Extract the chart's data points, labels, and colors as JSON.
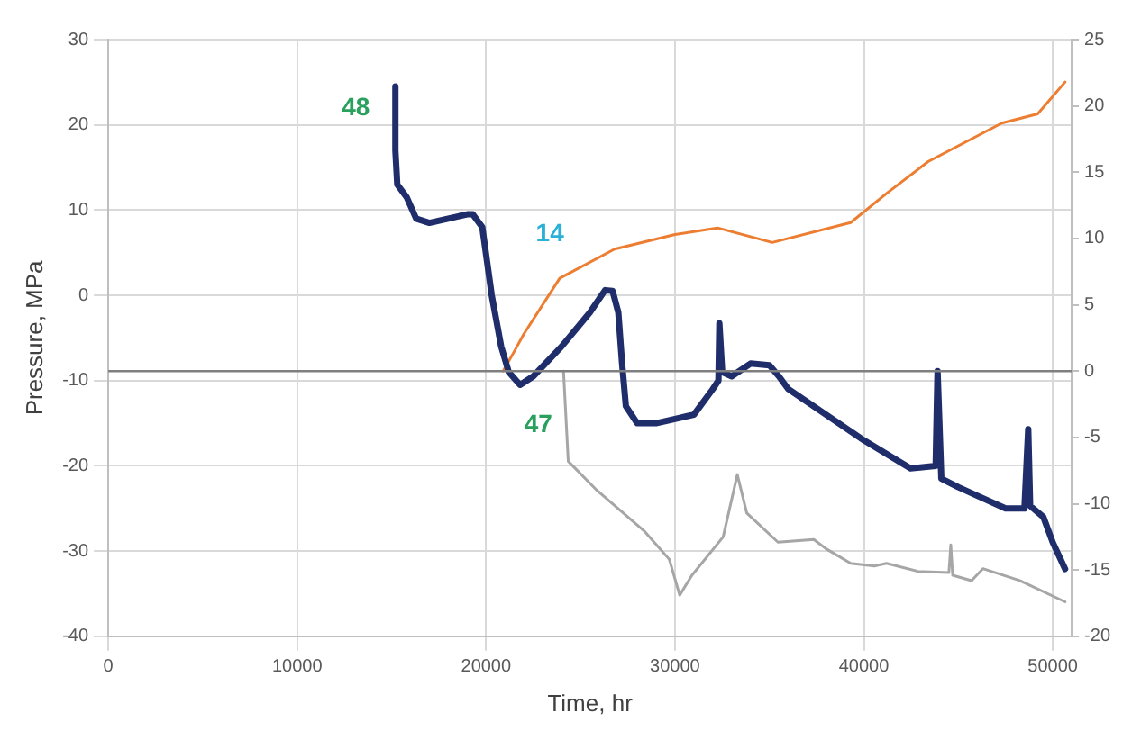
{
  "chart_data": {
    "type": "line",
    "xlabel": "Time, hr",
    "ylabel": "Pressure, MPa",
    "xlim": [
      0,
      51000
    ],
    "xticks": [
      0,
      10000,
      20000,
      30000,
      40000,
      50000
    ],
    "ylim": [
      -40,
      30
    ],
    "yticks": [
      -40,
      -30,
      -20,
      -10,
      0,
      10,
      20,
      30
    ],
    "y2lim": [
      -20,
      25
    ],
    "y2ticks": [
      -20,
      -15,
      -10,
      -5,
      0,
      5,
      10,
      15,
      20,
      25
    ],
    "grid": true,
    "legend": false,
    "marker": "none",
    "ref_lines": [
      {
        "axis": "y2",
        "value": 0,
        "color": "#7f7f7f"
      }
    ],
    "series": [
      {
        "name": "48",
        "color": "#1f2d6b",
        "x": [
          15200,
          15200,
          15300,
          15800,
          16300,
          17000,
          18000,
          19000,
          19300,
          19800,
          20300,
          20800,
          21200,
          21800,
          22500,
          24000,
          25500,
          26300,
          26700,
          27000,
          27200,
          27400,
          28000,
          29000,
          30000,
          31000,
          32000,
          32300,
          32350,
          32500,
          33000,
          34000,
          35000,
          35500,
          36000,
          38000,
          40000,
          42470,
          43800,
          43900,
          44100,
          45000,
          46000,
          47500,
          48500,
          48700,
          48800,
          49500,
          50000,
          50650
        ],
        "values": [
          24.5,
          17,
          13,
          11.5,
          9,
          8.5,
          9,
          9.5,
          9.5,
          8,
          0,
          -6,
          -9,
          -10.5,
          -9.5,
          -6,
          -2,
          0.6,
          0.5,
          -2,
          -8,
          -13,
          -15,
          -15,
          -14.5,
          -14,
          -11,
          -10,
          -3.3,
          -9,
          -9.5,
          -8,
          -8.2,
          -9.5,
          -11,
          -14,
          -17,
          -20.3,
          -20,
          -8.9,
          -21.5,
          -22.5,
          -23.5,
          -25,
          -25,
          -15.7,
          -24.7,
          -26,
          -29,
          -32.1
        ]
      },
      {
        "name": "14",
        "color": "#ed7d31",
        "axis": "y2",
        "x": [
          20900,
          21500,
          22000,
          23900,
          26800,
          30000,
          32250,
          35150,
          39300,
          41200,
          43400,
          47300,
          49200,
          50650
        ],
        "values": [
          0,
          1.5,
          2.8,
          7,
          9.2,
          10.3,
          10.8,
          9.7,
          11.2,
          13.4,
          15.8,
          18.7,
          19.4,
          21.8
        ]
      },
      {
        "name": "47",
        "color": "#a6a6a6",
        "axis": "y2",
        "x": [
          24100,
          24350,
          25800,
          28400,
          29700,
          30250,
          30900,
          32550,
          33300,
          33800,
          35450,
          37350,
          38000,
          39300,
          40550,
          41200,
          42850,
          44500,
          44600,
          44700,
          45700,
          46300,
          48250,
          50650
        ],
        "values": [
          0,
          -6.8,
          -8.9,
          -12.1,
          -14.2,
          -16.9,
          -15.4,
          -12.5,
          -7.8,
          -10.7,
          -12.9,
          -12.7,
          -13.4,
          -14.5,
          -14.7,
          -14.5,
          -15.1,
          -15.2,
          -13.1,
          -15.4,
          -15.8,
          -14.9,
          -15.8,
          -17.4
        ]
      }
    ]
  }
}
